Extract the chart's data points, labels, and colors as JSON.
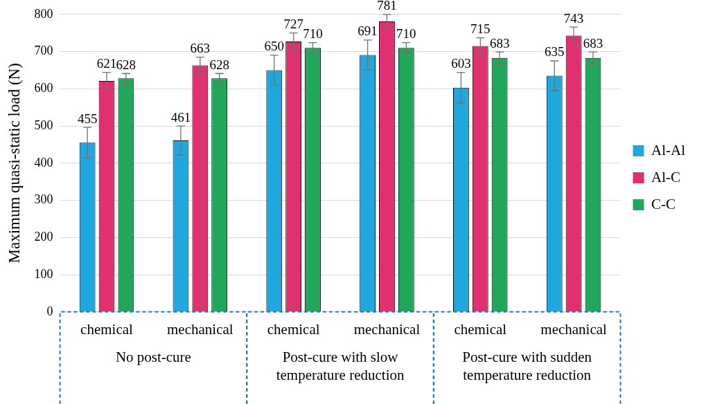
{
  "chart_data": {
    "type": "bar",
    "ylabel": "Maximum quasi-static load (N)",
    "categories": [
      "chemical",
      "mechanical",
      "chemical",
      "mechanical",
      "chemical",
      "mechanical"
    ],
    "annotations": [
      "No post-cure",
      "Post-cure with slow temperature reduction",
      "Post-cure with sudden temperature reduction"
    ],
    "series": [
      {
        "name": "Al-Al",
        "color": "#1fa8e0",
        "values": [
          455,
          461,
          650,
          691,
          603,
          635
        ],
        "errors": [
          41,
          39,
          40,
          40,
          41,
          40
        ]
      },
      {
        "name": "Al-C",
        "color": "#e0306f",
        "values": [
          621,
          663,
          727,
          781,
          715,
          743
        ],
        "errors": [
          23,
          22,
          23,
          19,
          22,
          23
        ]
      },
      {
        "name": "C-C",
        "color": "#1fa85a",
        "values": [
          628,
          628,
          710,
          710,
          683,
          683
        ],
        "errors": [
          13,
          13,
          14,
          14,
          16,
          16
        ]
      }
    ],
    "ylim": [
      0,
      800
    ],
    "yticks": [
      0,
      100,
      200,
      300,
      400,
      500,
      600,
      700,
      800
    ],
    "grid": "y",
    "legend": "right",
    "data_labels": true
  }
}
